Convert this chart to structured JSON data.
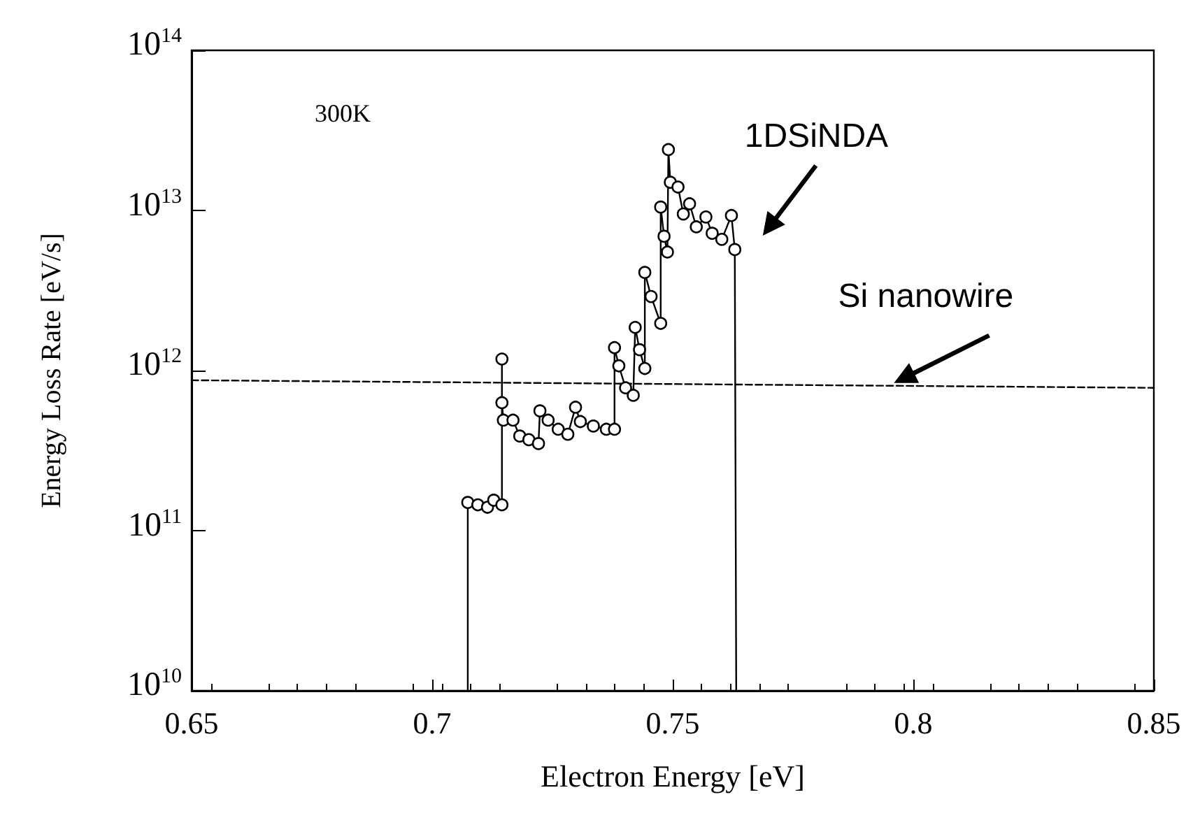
{
  "chart_data": {
    "type": "line",
    "xlabel": "Electron Energy [eV]",
    "ylabel": "Energy Loss Rate [eV/s]",
    "annotations": [
      "300K"
    ],
    "x": [
      0.7074,
      0.7074,
      0.7095,
      0.7115,
      0.7128,
      0.7145,
      0.7145,
      0.7145,
      0.7148,
      0.7168,
      0.7182,
      0.7201,
      0.7221,
      0.7224,
      0.7241,
      0.7262,
      0.7282,
      0.7298,
      0.7308,
      0.7335,
      0.7362,
      0.7379,
      0.7379,
      0.7388,
      0.7402,
      0.7418,
      0.7422,
      0.7431,
      0.7442,
      0.7442,
      0.7455,
      0.7475,
      0.7475,
      0.7482,
      0.7489,
      0.7491,
      0.7495,
      0.7511,
      0.7522,
      0.7535,
      0.7549,
      0.7569,
      0.7582,
      0.7602,
      0.7622,
      0.7629,
      0.7632
    ],
    "series": [
      {
        "name": "1DSiNDA",
        "color": "#000000",
        "marker": "circle",
        "line_style": "solid",
        "values": [
          10000000000.0,
          150000000000.0,
          145000000000.0,
          140000000000.0,
          155000000000.0,
          145000000000.0,
          1180000000000.0,
          630000000000.0,
          490000000000.0,
          490000000000.0,
          390000000000.0,
          370000000000.0,
          350000000000.0,
          560000000000.0,
          490000000000.0,
          430000000000.0,
          400000000000.0,
          590000000000.0,
          480000000000.0,
          450000000000.0,
          430000000000.0,
          430000000000.0,
          1390000000000.0,
          1070000000000.0,
          780000000000.0,
          700000000000.0,
          1860000000000.0,
          1350000000000.0,
          1030000000000.0,
          4100000000000.0,
          2900000000000.0,
          1970000000000.0,
          10500000000000.0,
          6900000000000.0,
          5500000000000.0,
          24000000000000.0,
          15000000000000.0,
          14000000000000.0,
          9500000000000.0,
          11000000000000.0,
          7900000000000.0,
          9100000000000.0,
          7200000000000.0,
          6600000000000.0,
          9300000000000.0,
          5700000000000.0,
          10000000000.0
        ]
      },
      {
        "name": "Si nanowire",
        "color": "#000000",
        "marker": "none",
        "line_style": "dashed",
        "x": [
          0.65,
          0.85
        ],
        "values": [
          870000000000.0,
          780000000000.0
        ]
      }
    ],
    "xlim": [
      0.65,
      0.85
    ],
    "xticks": [
      0.65,
      0.7,
      0.75,
      0.8,
      0.85
    ],
    "ylim": [
      10000000000.0,
      100000000000000.0
    ],
    "log": "y",
    "yticks": [
      {
        "value": 10000000000.0,
        "label": "10$^{10}$"
      },
      {
        "value": 100000000000.0,
        "label": "10$^{11}$"
      },
      {
        "value": 1000000000000.0,
        "label": "10$^{12}$"
      },
      {
        "value": 10000000000000.0,
        "label": "10$^{13}$"
      },
      {
        "value": 100000000000000.0,
        "label": "10$^{14}$"
      }
    ],
    "grid": false,
    "legend": false
  }
}
